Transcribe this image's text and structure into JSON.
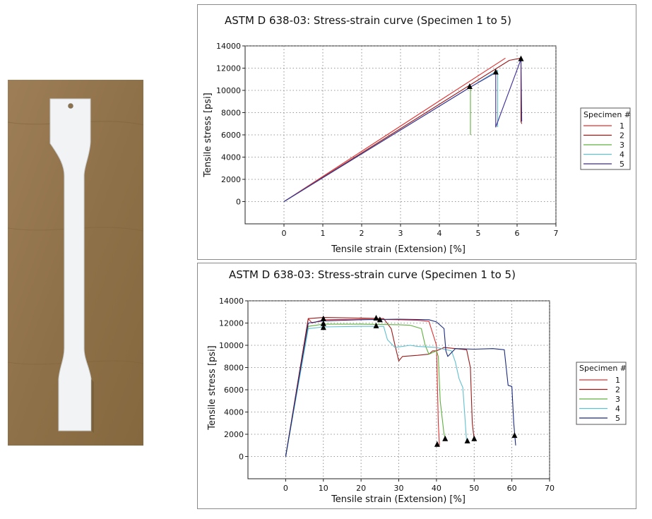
{
  "photo": {
    "subject": "tensile-dogbone-specimen"
  },
  "charts": [
    {
      "title": "ASTM D 638-03: Stress-strain curve (Specimen 1 to 5)",
      "xlabel": "Tensile strain (Extension) [%]",
      "ylabel": "Tensile stress [psi]",
      "legend_title": "Specimen #"
    },
    {
      "title": "ASTM D 638-03: Stress-strain curve (Specimen 1 to 5)",
      "xlabel": "Tensile strain (Extension) [%]",
      "ylabel": "Tensile stress [psi]",
      "legend_title": "Specimen #"
    }
  ],
  "chart_data": [
    {
      "type": "line",
      "title": "ASTM D 638-03: Stress-strain curve (Specimen 1 to 5)",
      "xlabel": "Tensile strain (Extension) [%]",
      "ylabel": "Tensile stress [psi]",
      "xlim": [
        -1,
        7
      ],
      "ylim": [
        -2000,
        14000
      ],
      "xticks": [
        0,
        1,
        2,
        3,
        4,
        5,
        6,
        7
      ],
      "yticks": [
        0,
        2000,
        4000,
        6000,
        8000,
        10000,
        12000,
        14000
      ],
      "grid": true,
      "legend_title": "Specimen #",
      "legend_position": "right",
      "series": [
        {
          "name": "1",
          "color": "#e03030",
          "x": [
            0,
            5.7
          ],
          "y": [
            0,
            12900
          ]
        },
        {
          "name": "2",
          "color": "#9a1a1a",
          "x": [
            0,
            5.8,
            6.1,
            6.1,
            6.12
          ],
          "y": [
            0,
            12700,
            12900,
            7200,
            7000
          ]
        },
        {
          "name": "3",
          "color": "#60b040",
          "x": [
            0,
            4.8,
            4.8
          ],
          "y": [
            0,
            10300,
            6000
          ]
        },
        {
          "name": "4",
          "color": "#60c0d0",
          "x": [
            0,
            5.5,
            5.5
          ],
          "y": [
            0,
            11800,
            6700
          ]
        },
        {
          "name": "5",
          "color": "#3a2c9a",
          "x": [
            0,
            4.8,
            5.45,
            5.45,
            5.45,
            6.1,
            6.1,
            6.12
          ],
          "y": [
            0,
            10300,
            11600,
            11600,
            6700,
            12800,
            12800,
            7200
          ]
        }
      ],
      "markers": [
        {
          "x": 4.78,
          "y": 10350
        },
        {
          "x": 5.45,
          "y": 11650
        },
        {
          "x": 6.1,
          "y": 12850
        }
      ]
    },
    {
      "type": "line",
      "title": "ASTM D 638-03: Stress-strain curve (Specimen 1 to 5)",
      "xlabel": "Tensile strain (Extension) [%]",
      "ylabel": "Tensile stress [psi]",
      "xlim": [
        -10,
        70
      ],
      "ylim": [
        -2000,
        14000
      ],
      "xticks": [
        0,
        10,
        20,
        30,
        40,
        50,
        60,
        70
      ],
      "yticks": [
        0,
        2000,
        4000,
        6000,
        8000,
        10000,
        12000,
        14000
      ],
      "grid": true,
      "legend_title": "Specimen #",
      "legend_position": "right",
      "series": [
        {
          "name": "1",
          "color": "#e03030",
          "x": [
            0,
            6,
            7,
            10,
            20,
            30,
            35,
            38,
            40,
            40.5,
            40.8
          ],
          "y": [
            0,
            12400,
            12000,
            12300,
            12350,
            12300,
            12250,
            12150,
            10000,
            3000,
            1000
          ]
        },
        {
          "name": "2",
          "color": "#9a1a1a",
          "x": [
            0,
            6,
            10,
            20,
            26,
            28,
            29,
            30,
            31,
            35,
            38,
            39,
            40,
            42,
            45,
            48,
            49,
            49.5,
            50
          ],
          "y": [
            0,
            12400,
            12500,
            12450,
            12400,
            11500,
            10000,
            8600,
            9000,
            9100,
            9200,
            9500,
            9500,
            9800,
            9700,
            9600,
            8000,
            3000,
            1500
          ]
        },
        {
          "name": "3",
          "color": "#60b040",
          "x": [
            0,
            6,
            10,
            20,
            30,
            33,
            36,
            37,
            38,
            40,
            40.5,
            41,
            42,
            42.5
          ],
          "y": [
            0,
            11700,
            11900,
            11900,
            11850,
            11800,
            11500,
            10000,
            9200,
            9500,
            9000,
            5000,
            2000,
            1500
          ]
        },
        {
          "name": "4",
          "color": "#60c0d0",
          "x": [
            0,
            6,
            10,
            20,
            26,
            27,
            29,
            33,
            35,
            40,
            44,
            45,
            46,
            47,
            48
          ],
          "y": [
            0,
            11500,
            11650,
            11700,
            11700,
            10500,
            9800,
            10000,
            9900,
            9800,
            9500,
            8500,
            7000,
            6200,
            1300
          ]
        },
        {
          "name": "5",
          "color": "#1a2a80",
          "x": [
            0,
            6,
            10,
            20,
            30,
            38,
            40,
            42,
            42.5,
            43,
            45,
            50,
            55,
            58,
            58.5,
            59,
            60,
            60.5,
            61
          ],
          "y": [
            0,
            12000,
            12200,
            12300,
            12350,
            12300,
            12100,
            11500,
            9500,
            9000,
            9700,
            9650,
            9700,
            9600,
            8000,
            6400,
            6300,
            3000,
            1000
          ]
        }
      ],
      "markers": [
        {
          "x": 10,
          "y": 12400
        },
        {
          "x": 10,
          "y": 11950
        },
        {
          "x": 10,
          "y": 11600
        },
        {
          "x": 24,
          "y": 12450
        },
        {
          "x": 25,
          "y": 12300
        },
        {
          "x": 24,
          "y": 11750
        },
        {
          "x": 40.2,
          "y": 1100
        },
        {
          "x": 42.3,
          "y": 1600
        },
        {
          "x": 48.2,
          "y": 1400
        },
        {
          "x": 50,
          "y": 1600
        },
        {
          "x": 60.7,
          "y": 1900
        }
      ]
    }
  ]
}
